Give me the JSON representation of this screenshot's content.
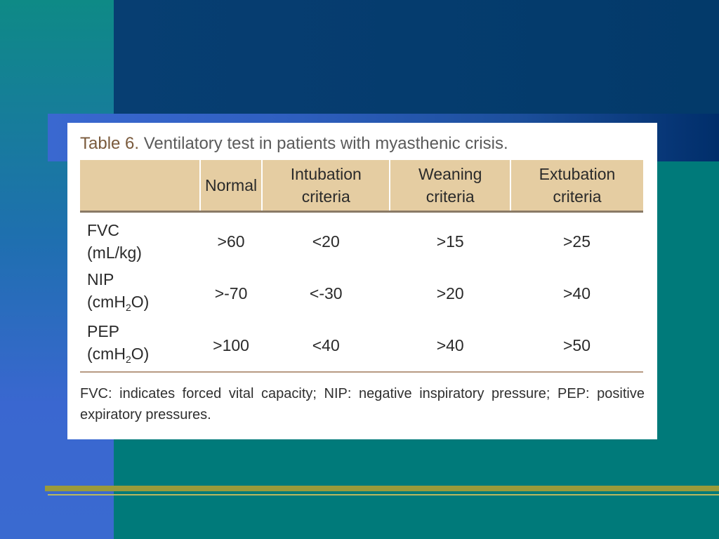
{
  "slide": {
    "table": {
      "caption_label": "Table 6.",
      "caption_text": "Ventilatory test in patients with myasthenic crisis.",
      "columns": [
        "",
        "Normal",
        "Intubation criteria",
        "Weaning criteria",
        "Extubation criteria"
      ],
      "rows": [
        {
          "name": "FVC",
          "unit": "(mL/kg)",
          "unit_base": "",
          "unit_sub": "",
          "unit_end": "",
          "values": [
            ">60",
            "<20",
            ">15",
            ">25"
          ]
        },
        {
          "name": "NIP",
          "unit": "",
          "unit_base": "(cmH",
          "unit_sub": "2",
          "unit_end": "O)",
          "values": [
            ">-70",
            "<-30",
            ">20",
            ">40"
          ]
        },
        {
          "name": "PEP",
          "unit": "",
          "unit_base": "(cmH",
          "unit_sub": "2",
          "unit_end": "O)",
          "values": [
            ">100",
            "<40",
            ">40",
            ">50"
          ]
        }
      ],
      "footnote": "FVC: indicates forced vital capacity; NIP: negative inspiratory pressure; PEP: positive expiratory pressures."
    },
    "colors": {
      "header_fill": "#e5cda2",
      "background": "#007a7a",
      "accent_line": "#9a9a3a"
    }
  }
}
